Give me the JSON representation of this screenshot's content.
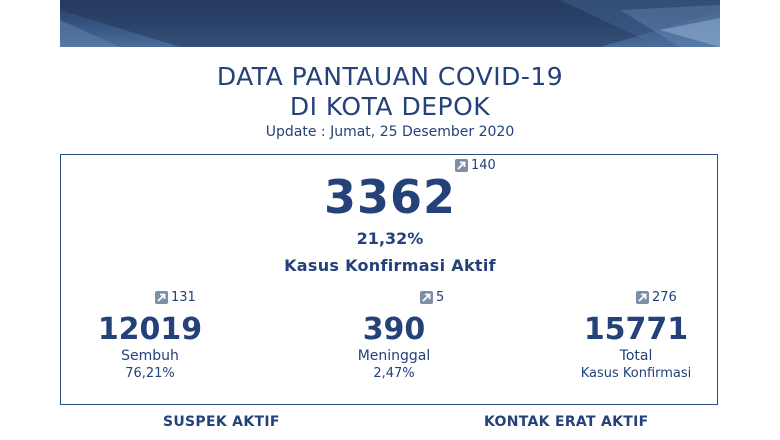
{
  "header": {
    "title_line1": "DATA PANTAUAN COVID-19",
    "title_line2": "DI KOTA DEPOK",
    "update": "Update : Jumat, 25 Desember 2020"
  },
  "active": {
    "value": "3362",
    "delta": "140",
    "percent": "21,32%",
    "label": "Kasus Konfirmasi Aktif"
  },
  "recovered": {
    "value": "12019",
    "delta": "131",
    "label": "Sembuh",
    "percent": "76,21%"
  },
  "deaths": {
    "value": "390",
    "delta": "5",
    "label": "Meninggal",
    "percent": "2,47%"
  },
  "total": {
    "value": "15771",
    "delta": "276",
    "label": "Total",
    "sublabel": "Kasus Konfirmasi"
  },
  "sections": {
    "suspect": "SUSPEK AKTIF",
    "contact": "KONTAK ERAT AKTIF"
  },
  "colors": {
    "primary": "#24417a",
    "badge": "#7c8ea8",
    "banner": "#2a3f66"
  },
  "icons": {
    "delta": "arrow-up-right-icon"
  }
}
